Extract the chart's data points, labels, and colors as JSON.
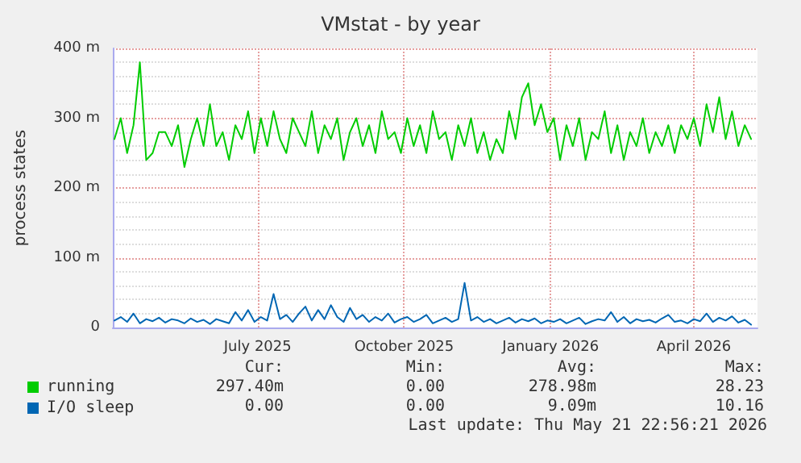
{
  "chart_data": {
    "type": "line",
    "title": "VMstat - by year",
    "ylabel": "process states",
    "x": [
      "2025-04-02",
      "2025-04-06",
      "2025-04-10",
      "2025-04-14",
      "2025-04-18",
      "2025-04-22",
      "2025-04-26",
      "2025-04-30",
      "2025-05-04",
      "2025-05-08",
      "2025-05-12",
      "2025-05-16",
      "2025-05-20",
      "2025-05-24",
      "2025-05-28",
      "2025-06-01",
      "2025-06-05",
      "2025-06-09",
      "2025-06-13",
      "2025-06-17",
      "2025-06-21",
      "2025-06-25",
      "2025-06-29",
      "2025-07-03",
      "2025-07-07",
      "2025-07-11",
      "2025-07-15",
      "2025-07-19",
      "2025-07-23",
      "2025-07-27",
      "2025-07-31",
      "2025-08-04",
      "2025-08-08",
      "2025-08-12",
      "2025-08-16",
      "2025-08-20",
      "2025-08-24",
      "2025-08-28",
      "2025-09-01",
      "2025-09-05",
      "2025-09-09",
      "2025-09-13",
      "2025-09-17",
      "2025-09-21",
      "2025-09-25",
      "2025-09-29",
      "2025-10-03",
      "2025-10-07",
      "2025-10-11",
      "2025-10-15",
      "2025-10-19",
      "2025-10-23",
      "2025-10-27",
      "2025-10-31",
      "2025-11-04",
      "2025-11-08",
      "2025-11-12",
      "2025-11-16",
      "2025-11-20",
      "2025-11-24",
      "2025-11-28",
      "2025-12-02",
      "2025-12-06",
      "2025-12-10",
      "2025-12-14",
      "2025-12-18",
      "2025-12-22",
      "2025-12-26",
      "2025-12-30",
      "2026-01-03",
      "2026-01-07",
      "2026-01-11",
      "2026-01-15",
      "2026-01-19",
      "2026-01-23",
      "2026-01-27",
      "2026-01-31",
      "2026-02-04",
      "2026-02-08",
      "2026-02-12",
      "2026-02-16",
      "2026-02-20",
      "2026-02-24",
      "2026-02-28",
      "2026-03-04",
      "2026-03-08",
      "2026-03-12",
      "2026-03-16",
      "2026-03-20",
      "2026-03-24",
      "2026-03-28",
      "2026-04-01",
      "2026-04-05",
      "2026-04-09",
      "2026-04-13",
      "2026-04-17",
      "2026-04-21",
      "2026-04-25",
      "2026-04-29",
      "2026-05-03",
      "2026-05-07"
    ],
    "series": [
      {
        "name": "running",
        "color": "#00cc00",
        "values": [
          270,
          300,
          250,
          290,
          380,
          240,
          250,
          280,
          280,
          260,
          290,
          230,
          270,
          300,
          260,
          320,
          260,
          280,
          240,
          290,
          270,
          310,
          250,
          300,
          260,
          310,
          270,
          250,
          300,
          280,
          260,
          310,
          250,
          290,
          270,
          300,
          240,
          280,
          300,
          260,
          290,
          250,
          310,
          270,
          280,
          250,
          300,
          260,
          290,
          250,
          310,
          270,
          280,
          240,
          290,
          260,
          300,
          250,
          280,
          240,
          270,
          250,
          310,
          270,
          330,
          350,
          290,
          320,
          280,
          300,
          240,
          290,
          260,
          300,
          240,
          280,
          270,
          310,
          250,
          290,
          240,
          280,
          260,
          300,
          250,
          280,
          260,
          290,
          250,
          290,
          270,
          300,
          260,
          320,
          280,
          330,
          270,
          310,
          260,
          290,
          270
        ]
      },
      {
        "name": "I/O sleep",
        "color": "#0066b3",
        "values": [
          10,
          15,
          8,
          20,
          6,
          12,
          9,
          14,
          7,
          12,
          10,
          6,
          13,
          8,
          11,
          5,
          12,
          9,
          6,
          22,
          10,
          25,
          8,
          15,
          10,
          48,
          12,
          18,
          8,
          20,
          30,
          10,
          25,
          12,
          32,
          15,
          8,
          28,
          12,
          18,
          8,
          15,
          10,
          20,
          7,
          12,
          15,
          8,
          12,
          18,
          6,
          10,
          14,
          8,
          12,
          64,
          10,
          15,
          8,
          12,
          6,
          10,
          14,
          7,
          12,
          9,
          13,
          6,
          10,
          8,
          12,
          6,
          10,
          14,
          5,
          9,
          12,
          10,
          22,
          8,
          15,
          6,
          12,
          9,
          11,
          7,
          13,
          18,
          8,
          10,
          6,
          12,
          9,
          20,
          8,
          14,
          10,
          16,
          7,
          11,
          4
        ]
      }
    ],
    "xlim": [
      "2025-04-01",
      "2026-05-11"
    ],
    "xticks": [
      {
        "value": "2025-07-01",
        "label": "July 2025"
      },
      {
        "value": "2025-10-01",
        "label": "October 2025"
      },
      {
        "value": "2026-01-01",
        "label": "January 2026"
      },
      {
        "value": "2026-04-01",
        "label": "April 2026"
      }
    ],
    "ylim": [
      0,
      400
    ],
    "yticks": [
      0,
      {
        "value": 100,
        "label": "100 m"
      },
      {
        "value": 200,
        "label": "200 m"
      },
      {
        "value": 300,
        "label": "300 m"
      },
      {
        "value": 400,
        "label": "400 m"
      }
    ],
    "grid": true,
    "legend": "bottom left",
    "marker": "none",
    "line_style": "solid",
    "annotations": [
      "Cur:",
      "Min:",
      "Avg:",
      "Max:",
      "297.40m",
      "0.00",
      "278.98m",
      "28.23",
      "0.00",
      "0.00",
      "9.09m",
      "10.16",
      "Last update: Thu May 21 22:56:21 2026"
    ]
  }
}
